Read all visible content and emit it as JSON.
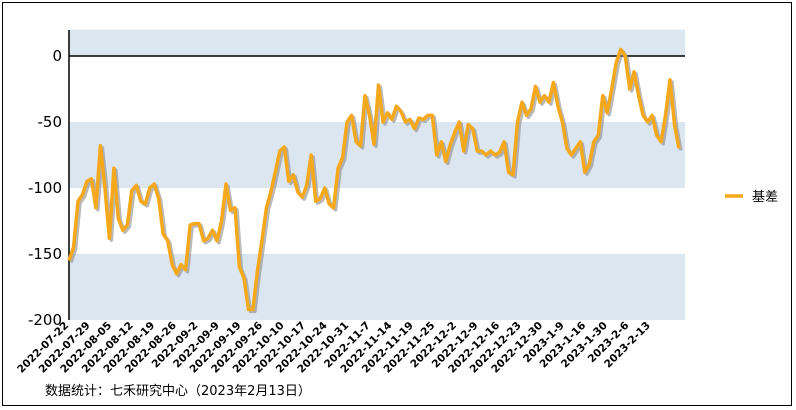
{
  "chart_data": {
    "type": "line",
    "ylim": [
      -200,
      20
    ],
    "yticks": [
      0,
      -50,
      -100,
      -150,
      -200
    ],
    "bands": [
      [
        -200,
        -150
      ],
      [
        -100,
        -50
      ],
      [
        0,
        20
      ]
    ],
    "colors": {
      "series": "#F5A81C",
      "series_shadow": "#8a8a8a",
      "band": "#DCE6F1",
      "zero_line": "#000000"
    },
    "x_tick_labels": [
      "2022-07-22",
      "2022-07-29",
      "2022-08-05",
      "2022-08-12",
      "2022-08-19",
      "2022-08-26",
      "2022-09-2",
      "2022-09-9",
      "2022-09-19",
      "2022-09-26",
      "2022-10-10",
      "2022-10-17",
      "2022-10-24",
      "2022-10-31",
      "2022-11-7",
      "2022-11-14",
      "2022-11-19",
      "2022-11-25",
      "2022-12-2",
      "2022-12-9",
      "2022-12-16",
      "2022-12-23",
      "2022-12-30",
      "2023-1-9",
      "2023-1-16",
      "2023-1-30",
      "2023-2-6",
      "2023-2-13"
    ],
    "legend_position": "right",
    "series": [
      {
        "name": "基差",
        "values": [
          -155,
          -145,
          -110,
          -105,
          -95,
          -93,
          -115,
          -68,
          -100,
          -138,
          -85,
          -123,
          -132,
          -128,
          -102,
          -98,
          -110,
          -112,
          -100,
          -97,
          -108,
          -135,
          -140,
          -158,
          -165,
          -158,
          -162,
          -128,
          -127,
          -127,
          -140,
          -138,
          -132,
          -140,
          -125,
          -97,
          -117,
          -115,
          -160,
          -168,
          -192,
          -192,
          -163,
          -140,
          -115,
          -103,
          -88,
          -72,
          -69,
          -95,
          -90,
          -103,
          -107,
          -98,
          -75,
          -110,
          -108,
          -100,
          -112,
          -115,
          -85,
          -77,
          -50,
          -45,
          -65,
          -68,
          -30,
          -45,
          -67,
          -22,
          -50,
          -43,
          -48,
          -38,
          -42,
          -50,
          -48,
          -55,
          -47,
          -48,
          -45,
          -45,
          -75,
          -65,
          -80,
          -67,
          -58,
          -50,
          -72,
          -52,
          -55,
          -72,
          -72,
          -75,
          -72,
          -75,
          -73,
          -65,
          -88,
          -90,
          -50,
          -35,
          -45,
          -40,
          -23,
          -35,
          -30,
          -35,
          -20,
          -38,
          -50,
          -70,
          -75,
          -70,
          -65,
          -88,
          -82,
          -65,
          -60,
          -30,
          -43,
          -25,
          -5,
          5,
          0,
          -25,
          -12,
          -30,
          -45,
          -50,
          -45,
          -60,
          -65,
          -45,
          -18,
          -52,
          -70
        ]
      }
    ]
  },
  "source_text": "数据统计：七禾研究中心（2023年2月13日）"
}
